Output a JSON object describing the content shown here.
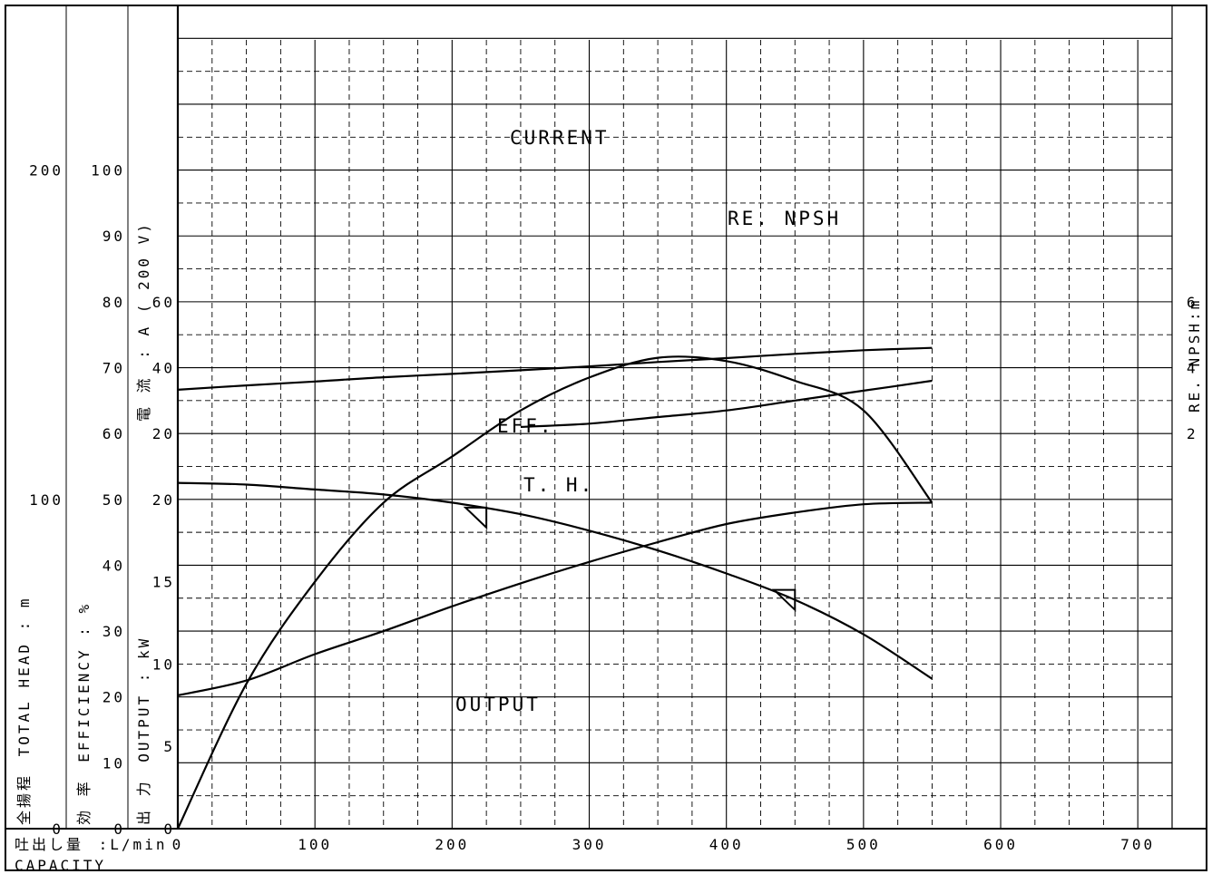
{
  "chart_data": {
    "type": "line",
    "x_axis": {
      "label_jp": "吐出し量",
      "unit": ":L/min",
      "label_en": "CAPACITY",
      "ticks": [
        0,
        100,
        200,
        300,
        400,
        500,
        600,
        700
      ],
      "range": [
        0,
        725
      ]
    },
    "y_axes": {
      "total_head": {
        "label_jp": "全揚程",
        "label_en": "TOTAL HEAD : m",
        "ticks": [
          0,
          100,
          200
        ],
        "range": [
          0,
          250
        ]
      },
      "efficiency": {
        "label_jp": "効 率",
        "label_en": "EFFICIENCY : %",
        "ticks": [
          0,
          10,
          20,
          30,
          40,
          50,
          60,
          70,
          80,
          90,
          100
        ],
        "range": [
          0,
          125
        ]
      },
      "output": {
        "label_jp": "出 力",
        "label_en": "OUTPUT : kW",
        "ticks": [
          0,
          5,
          10,
          15,
          20
        ],
        "range": [
          0,
          50
        ]
      },
      "current": {
        "label_jp": "電 流",
        "label_en": ": A ( 200 V)",
        "ticks": [
          20,
          40,
          60
        ],
        "range": [
          -100,
          150
        ]
      },
      "npsh": {
        "label_en": "RE. NPSH:m",
        "ticks": [
          2,
          4,
          6
        ],
        "range": [
          -10,
          15
        ]
      }
    },
    "series": [
      {
        "name": "CURRENT",
        "axis": "current",
        "x": [
          0,
          50,
          100,
          150,
          200,
          250,
          300,
          350,
          400,
          450,
          500,
          550
        ],
        "y": [
          33.3,
          34.6,
          35.8,
          37.1,
          38.1,
          39.2,
          40.4,
          41.7,
          42.9,
          44.2,
          45.3,
          46.0
        ]
      },
      {
        "name": "RE. NPSH",
        "axis": "npsh",
        "x": [
          250,
          300,
          350,
          400,
          450,
          500,
          550
        ],
        "y": [
          2.2,
          2.3,
          2.5,
          2.7,
          3.0,
          3.3,
          3.6
        ]
      },
      {
        "name": "EFF.",
        "axis": "efficiency",
        "x": [
          0,
          50,
          100,
          150,
          200,
          250,
          300,
          350,
          400,
          450,
          500,
          550
        ],
        "y": [
          0,
          22,
          37.5,
          49.5,
          56.5,
          63.5,
          68.5,
          71.5,
          71.0,
          68.0,
          63.5,
          49.5
        ]
      },
      {
        "name": "T. H.",
        "axis": "total_head",
        "x": [
          0,
          50,
          100,
          150,
          200,
          250,
          300,
          350,
          400,
          450,
          500,
          550
        ],
        "y": [
          105,
          104.5,
          103,
          101.5,
          99,
          95.5,
          90.5,
          84.5,
          77.5,
          69.5,
          59,
          45.5
        ]
      },
      {
        "name": "OUTPUT",
        "axis": "output",
        "x": [
          0,
          50,
          100,
          150,
          200,
          250,
          300,
          350,
          400,
          450,
          500,
          550
        ],
        "y": [
          8.1,
          9.0,
          10.6,
          12.0,
          13.5,
          14.9,
          16.2,
          17.4,
          18.5,
          19.2,
          19.7,
          19.8
        ]
      }
    ],
    "markers": [
      {
        "name": "duty-point-marker",
        "axis": "total_head",
        "x": 225,
        "y": 97.5
      },
      {
        "name": "runout-point-marker",
        "axis": "total_head",
        "x": 450,
        "y": 72.5
      }
    ]
  }
}
